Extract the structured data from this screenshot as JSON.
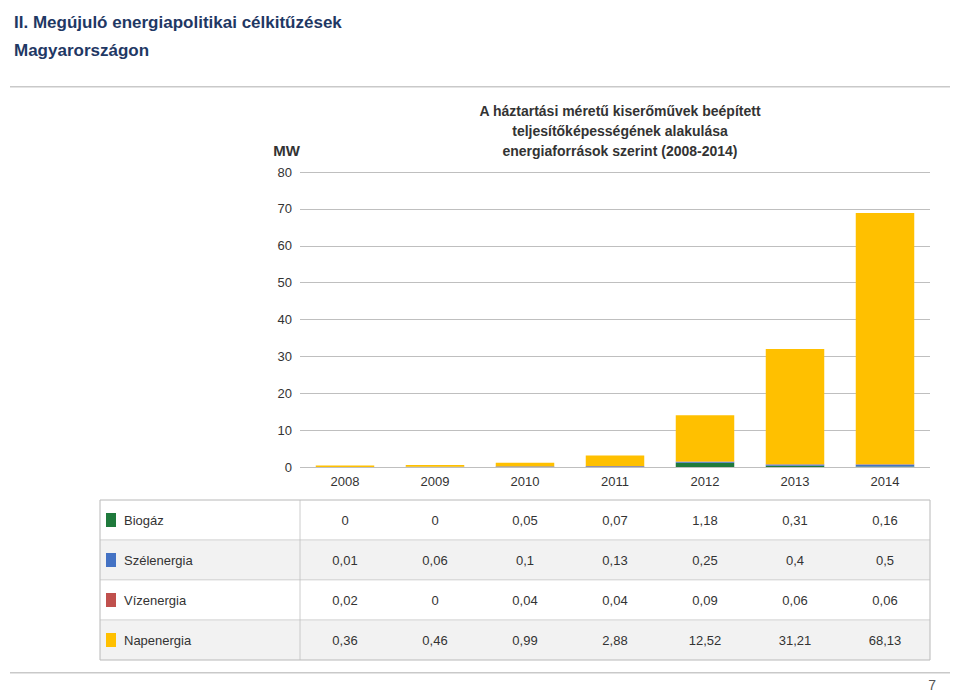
{
  "chart_data": {
    "type": "bar",
    "stacked": true,
    "title": "A háztartási méretű kiserőművek beépített\nteljesítőképességének alakulása\nenergiaforrások szerint (2008-2014)",
    "annotations": [
      "II. Megújuló energiapolitikai célkitűzések",
      "Magyarországon",
      "7"
    ],
    "ylabel": "MW",
    "categories": [
      "2008",
      "2009",
      "2010",
      "2011",
      "2012",
      "2013",
      "2014"
    ],
    "series": [
      {
        "name": "Biogáz",
        "color": "#1F7A3C",
        "values": [
          0,
          0,
          0.05,
          0.07,
          1.18,
          0.31,
          0.16
        ],
        "value_labels": [
          "0",
          "0",
          "0,05",
          "0,07",
          "1,18",
          "0,31",
          "0,16"
        ]
      },
      {
        "name": "Szélenergia",
        "color": "#4472C4",
        "values": [
          0.01,
          0.06,
          0.1,
          0.13,
          0.25,
          0.4,
          0.5
        ],
        "value_labels": [
          "0,01",
          "0,06",
          "0,1",
          "0,13",
          "0,25",
          "0,4",
          "0,5"
        ]
      },
      {
        "name": "Vízenergia",
        "color": "#C0504D",
        "values": [
          0.02,
          0,
          0.04,
          0.04,
          0.09,
          0.06,
          0.06
        ],
        "value_labels": [
          "0,02",
          "0",
          "0,04",
          "0,04",
          "0,09",
          "0,06",
          "0,06"
        ]
      },
      {
        "name": "Napenergia",
        "color": "#FFC000",
        "values": [
          0.36,
          0.46,
          0.99,
          2.88,
          12.52,
          31.21,
          68.13
        ],
        "value_labels": [
          "0,36",
          "0,46",
          "0,99",
          "2,88",
          "12,52",
          "31,21",
          "68,13"
        ]
      }
    ],
    "ylim": [
      0,
      80
    ],
    "yticks": [
      0,
      10,
      20,
      30,
      40,
      50,
      60,
      70,
      80
    ],
    "grid": true
  }
}
